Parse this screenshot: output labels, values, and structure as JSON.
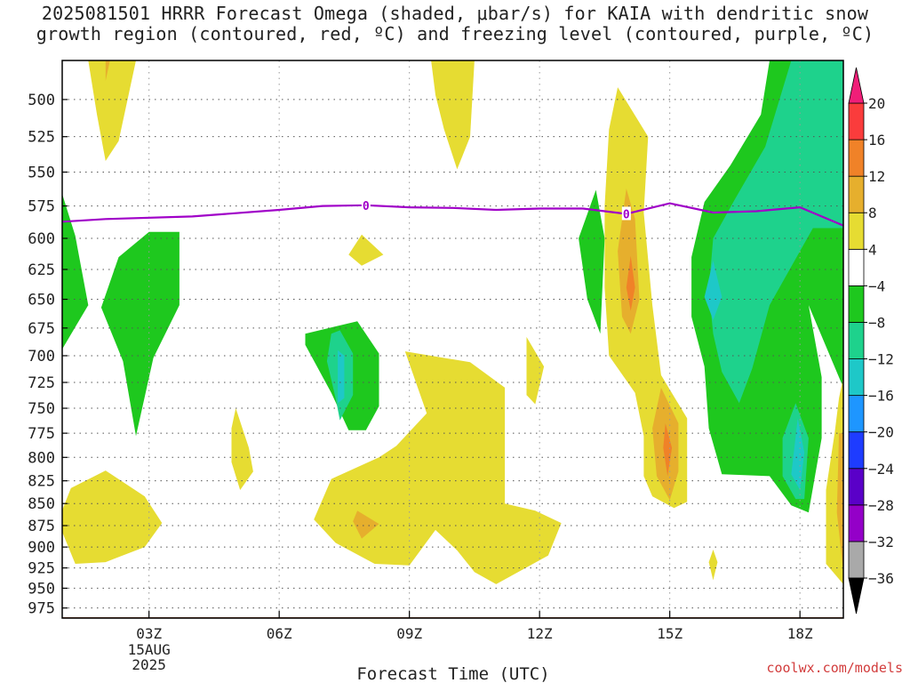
{
  "title": {
    "line1": "2025081501 HRRR Forecast Omega (shaded, μbar/s) for KAIA with dendritic snow",
    "line2": "growth region (contoured, red, ºC) and freezing level (contoured, purple, ºC)"
  },
  "credit": "coolwx.com/models",
  "chart_data": {
    "type": "time-height contour",
    "xlabel": "Forecast Time (UTC)",
    "x_ticks": [
      {
        "hour": 3,
        "label": "03Z",
        "sub": [
          "15AUG",
          "2025"
        ]
      },
      {
        "hour": 6,
        "label": "06Z"
      },
      {
        "hour": 9,
        "label": "09Z"
      },
      {
        "hour": 12,
        "label": "12Z"
      },
      {
        "hour": 15,
        "label": "15Z"
      },
      {
        "hour": 18,
        "label": "18Z"
      }
    ],
    "xlim": [
      1,
      19
    ],
    "y_ticks": [
      500,
      525,
      550,
      575,
      600,
      625,
      650,
      675,
      700,
      725,
      750,
      775,
      800,
      825,
      850,
      875,
      900,
      925,
      950,
      975
    ],
    "ylim": [
      475,
      988
    ],
    "y_scale": "log",
    "grid": true,
    "colorbar": {
      "levels": [
        -36,
        -32,
        -28,
        -24,
        -20,
        -16,
        -12,
        -8,
        -4,
        4,
        8,
        12,
        16,
        20
      ],
      "colors": [
        "#a9a9a9",
        "#9400c8",
        "#5a00c8",
        "#1e3cff",
        "#1e96ff",
        "#1ec8c8",
        "#1ed28c",
        "#1ec81e",
        "#ffffff",
        "#e6dc32",
        "#e6af2d",
        "#f08228",
        "#fa3c3c",
        "#f01e78"
      ],
      "under_color": "#000000",
      "over_color": "#f01e78"
    },
    "freezing_level": {
      "label": "0",
      "color": "#a000c8",
      "points": [
        [
          1,
          587
        ],
        [
          2,
          585
        ],
        [
          4,
          583
        ],
        [
          6,
          578
        ],
        [
          7,
          575
        ],
        [
          8,
          574.5
        ],
        [
          9,
          576
        ],
        [
          10,
          576.5
        ],
        [
          11,
          578
        ],
        [
          12,
          577
        ],
        [
          13,
          577
        ],
        [
          14,
          581
        ],
        [
          15,
          573
        ],
        [
          16,
          580
        ],
        [
          17,
          579
        ],
        [
          18,
          576
        ],
        [
          19,
          590
        ]
      ],
      "label_hours": [
        8,
        14
      ]
    },
    "terrain": {
      "color": "#a0522d",
      "pressure": 988
    },
    "regions": [
      {
        "level": 4,
        "pts": [
          [
            2.0,
            475
          ],
          [
            2.7,
            475
          ],
          [
            2.3,
            528
          ],
          [
            2.0,
            542
          ],
          [
            1.8,
            510
          ],
          [
            1.6,
            475
          ]
        ]
      },
      {
        "level": 8,
        "pts": [
          [
            2.0,
            475
          ],
          [
            2.1,
            475
          ],
          [
            2.0,
            488
          ]
        ]
      },
      {
        "level": -4,
        "pts": [
          [
            1.0,
            566
          ],
          [
            1.3,
            598
          ],
          [
            1.6,
            655
          ],
          [
            1.0,
            694
          ],
          [
            0.6,
            655
          ],
          [
            0.8,
            597
          ]
        ]
      },
      {
        "level": -4,
        "pts": [
          [
            3.0,
            595
          ],
          [
            3.7,
            595
          ],
          [
            3.7,
            655
          ],
          [
            3.1,
            702
          ],
          [
            2.7,
            778
          ],
          [
            2.4,
            705
          ],
          [
            1.9,
            657
          ],
          [
            2.3,
            615
          ]
        ]
      },
      {
        "level": 4,
        "pts": [
          [
            2.0,
            814
          ],
          [
            2.9,
            842
          ],
          [
            3.3,
            872
          ],
          [
            2.9,
            900
          ],
          [
            2.0,
            918
          ],
          [
            1.3,
            920
          ],
          [
            0.9,
            870
          ],
          [
            1.2,
            833
          ]
        ]
      },
      {
        "level": 4,
        "pts": [
          [
            5.0,
            750
          ],
          [
            5.3,
            790
          ],
          [
            5.4,
            815
          ],
          [
            5.1,
            835
          ],
          [
            4.9,
            805
          ],
          [
            4.9,
            770
          ]
        ]
      },
      {
        "level": -4,
        "pts": [
          [
            6.6,
            680
          ],
          [
            7.8,
            669
          ],
          [
            8.3,
            698
          ],
          [
            8.3,
            748
          ],
          [
            8.0,
            772
          ],
          [
            7.6,
            772
          ],
          [
            7.2,
            735
          ],
          [
            6.6,
            690
          ]
        ]
      },
      {
        "level": -8,
        "pts": [
          [
            7.2,
            680
          ],
          [
            7.4,
            677
          ],
          [
            7.7,
            698
          ],
          [
            7.7,
            737
          ],
          [
            7.4,
            762
          ],
          [
            7.3,
            740
          ],
          [
            7.1,
            705
          ]
        ]
      },
      {
        "level": -12,
        "pts": [
          [
            7.35,
            695
          ],
          [
            7.5,
            700
          ],
          [
            7.5,
            740
          ],
          [
            7.35,
            745
          ]
        ]
      },
      {
        "level": 4,
        "pts": [
          [
            7.9,
            597
          ],
          [
            8.4,
            613
          ],
          [
            7.9,
            622
          ],
          [
            7.6,
            613
          ]
        ]
      },
      {
        "level": 4,
        "pts": [
          [
            9.5,
            475
          ],
          [
            10.5,
            475
          ],
          [
            10.4,
            525
          ],
          [
            10.1,
            548
          ],
          [
            9.8,
            520
          ],
          [
            9.6,
            497
          ]
        ]
      },
      {
        "level": 4,
        "pts": [
          [
            10.4,
            706
          ],
          [
            11.2,
            730
          ],
          [
            11.2,
            850
          ],
          [
            11.9,
            858
          ],
          [
            12.5,
            872
          ],
          [
            12.2,
            910
          ],
          [
            11.0,
            945
          ],
          [
            10.5,
            930
          ],
          [
            10.1,
            904
          ],
          [
            9.6,
            880
          ],
          [
            9.0,
            922
          ],
          [
            8.2,
            920
          ],
          [
            7.3,
            895
          ],
          [
            6.8,
            868
          ],
          [
            7.2,
            823
          ],
          [
            8.3,
            800
          ],
          [
            8.7,
            788
          ],
          [
            9.4,
            755
          ],
          [
            8.9,
            696
          ]
        ]
      },
      {
        "level": 8,
        "pts": [
          [
            7.8,
            858
          ],
          [
            8.3,
            873
          ],
          [
            7.9,
            890
          ],
          [
            7.7,
            870
          ]
        ]
      },
      {
        "level": 4,
        "pts": [
          [
            11.7,
            683
          ],
          [
            12.1,
            710
          ],
          [
            11.9,
            746
          ],
          [
            11.7,
            737
          ]
        ]
      },
      {
        "level": -4,
        "pts": [
          [
            13.3,
            563
          ],
          [
            13.5,
            600
          ],
          [
            13.4,
            680
          ],
          [
            13.1,
            650
          ],
          [
            12.9,
            600
          ]
        ]
      },
      {
        "level": 4,
        "pts": [
          [
            13.8,
            492
          ],
          [
            14.5,
            525
          ],
          [
            14.4,
            580
          ],
          [
            14.6,
            655
          ],
          [
            14.8,
            718
          ],
          [
            15.4,
            760
          ],
          [
            15.4,
            848
          ],
          [
            15.1,
            855
          ],
          [
            14.6,
            842
          ],
          [
            14.4,
            820
          ],
          [
            14.4,
            778
          ],
          [
            14.2,
            735
          ],
          [
            13.6,
            700
          ],
          [
            13.5,
            640
          ],
          [
            13.5,
            575
          ],
          [
            13.6,
            520
          ]
        ]
      },
      {
        "level": 8,
        "pts": [
          [
            14.0,
            562
          ],
          [
            14.2,
            585
          ],
          [
            14.3,
            650
          ],
          [
            14.1,
            680
          ],
          [
            13.9,
            665
          ],
          [
            13.8,
            610
          ]
        ]
      },
      {
        "level": 12,
        "pts": [
          [
            14.1,
            614
          ],
          [
            14.2,
            640
          ],
          [
            14.1,
            660
          ],
          [
            14.0,
            640
          ]
        ]
      },
      {
        "level": 8,
        "pts": [
          [
            14.8,
            730
          ],
          [
            15.2,
            765
          ],
          [
            15.2,
            815
          ],
          [
            15.0,
            846
          ],
          [
            14.7,
            820
          ],
          [
            14.6,
            770
          ]
        ]
      },
      {
        "level": 12,
        "pts": [
          [
            14.9,
            765
          ],
          [
            15.05,
            790
          ],
          [
            14.95,
            820
          ],
          [
            14.85,
            790
          ]
        ]
      },
      {
        "level": -4,
        "pts": [
          [
            17.3,
            475
          ],
          [
            19.0,
            475
          ],
          [
            19.0,
            730
          ],
          [
            18.2,
            655
          ],
          [
            18.5,
            720
          ],
          [
            18.5,
            780
          ],
          [
            18.2,
            860
          ],
          [
            17.8,
            852
          ],
          [
            17.3,
            820
          ],
          [
            16.2,
            818
          ],
          [
            15.9,
            770
          ],
          [
            15.8,
            710
          ],
          [
            15.5,
            665
          ],
          [
            15.5,
            615
          ],
          [
            15.8,
            572
          ],
          [
            16.4,
            545
          ],
          [
            17.1,
            510
          ]
        ]
      },
      {
        "level": -8,
        "pts": [
          [
            17.8,
            475
          ],
          [
            19.0,
            475
          ],
          [
            19.0,
            592
          ],
          [
            18.3,
            592
          ],
          [
            17.3,
            655
          ],
          [
            16.9,
            712
          ],
          [
            16.6,
            745
          ],
          [
            16.2,
            715
          ],
          [
            16.0,
            680
          ],
          [
            15.9,
            642
          ],
          [
            16.0,
            600
          ],
          [
            16.5,
            570
          ],
          [
            17.2,
            532
          ]
        ]
      },
      {
        "level": -12,
        "pts": [
          [
            16.0,
            618
          ],
          [
            16.2,
            648
          ],
          [
            16.0,
            668
          ],
          [
            15.8,
            648
          ]
        ]
      },
      {
        "level": -8,
        "pts": [
          [
            17.9,
            745
          ],
          [
            18.2,
            780
          ],
          [
            18.1,
            845
          ],
          [
            17.9,
            845
          ],
          [
            17.6,
            820
          ],
          [
            17.6,
            780
          ]
        ]
      },
      {
        "level": -12,
        "pts": [
          [
            17.95,
            760
          ],
          [
            18.1,
            795
          ],
          [
            18.0,
            835
          ],
          [
            17.8,
            818
          ]
        ]
      },
      {
        "level": 4,
        "pts": [
          [
            18.9,
            740
          ],
          [
            19.0,
            720
          ],
          [
            19.0,
            945
          ],
          [
            18.6,
            920
          ],
          [
            18.6,
            835
          ],
          [
            18.8,
            775
          ]
        ]
      },
      {
        "level": 8,
        "pts": [
          [
            18.9,
            775
          ],
          [
            19.0,
            775
          ],
          [
            19.0,
            930
          ],
          [
            18.85,
            860
          ]
        ]
      },
      {
        "level": 4,
        "pts": [
          [
            16.0,
            903
          ],
          [
            16.1,
            918
          ],
          [
            16.0,
            940
          ],
          [
            15.9,
            918
          ]
        ]
      }
    ]
  }
}
